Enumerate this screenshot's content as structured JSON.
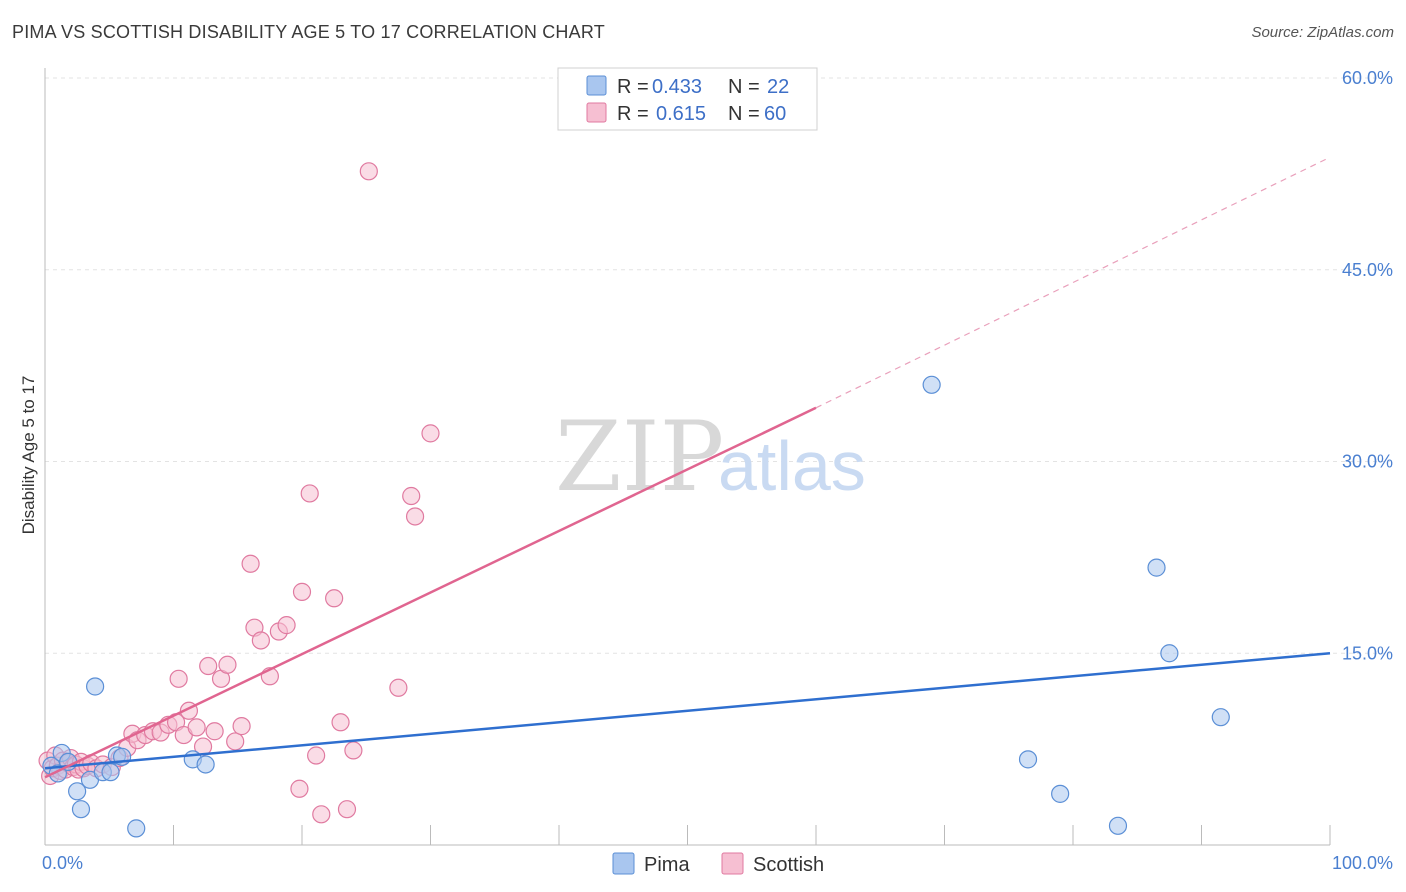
{
  "header": {
    "title": "PIMA VS SCOTTISH DISABILITY AGE 5 TO 17 CORRELATION CHART",
    "source": "Source: ZipAtlas.com"
  },
  "watermark": {
    "zip": "ZIP",
    "atlas": "atlas"
  },
  "legend": {
    "rows": [
      {
        "r_label": "R =",
        "r_value": "0.433",
        "n_label": "N =",
        "n_value": "22"
      },
      {
        "r_label": "R =",
        "r_value": "0.615",
        "n_label": "N =",
        "n_value": "60"
      }
    ]
  },
  "chart_data": {
    "type": "scatter",
    "title": "PIMA VS SCOTTISH DISABILITY AGE 5 TO 17 CORRELATION CHART",
    "ylabel": "Disability Age 5 to 17",
    "xlabel": "",
    "xlim": [
      0,
      100
    ],
    "ylim": [
      0,
      60
    ],
    "x_tick_labels": [
      "0.0%",
      "100.0%"
    ],
    "y_ticks": [
      15,
      30,
      45,
      60
    ],
    "y_tick_labels": [
      "15.0%",
      "30.0%",
      "45.0%",
      "60.0%"
    ],
    "grid": true,
    "legend_position": "top-center",
    "series": [
      {
        "name": "Pima",
        "color": "#5b8fd6",
        "fill": "#a9c6ef",
        "r": 0.433,
        "n": 22,
        "trend": {
          "x0": 0,
          "y0": 6.0,
          "x1": 100,
          "y1": 15.0,
          "dashed_from": 100
        },
        "points": [
          [
            0.5,
            6.2
          ],
          [
            1.0,
            5.6
          ],
          [
            1.3,
            7.2
          ],
          [
            1.8,
            6.5
          ],
          [
            2.5,
            4.2
          ],
          [
            2.8,
            2.8
          ],
          [
            3.5,
            5.1
          ],
          [
            3.9,
            12.4
          ],
          [
            4.5,
            5.7
          ],
          [
            5.1,
            5.7
          ],
          [
            5.6,
            7.0
          ],
          [
            6.0,
            6.9
          ],
          [
            7.1,
            1.3
          ],
          [
            11.5,
            6.7
          ],
          [
            12.5,
            6.3
          ],
          [
            69.0,
            36.0
          ],
          [
            76.5,
            6.7
          ],
          [
            79.0,
            4.0
          ],
          [
            83.5,
            1.5
          ],
          [
            86.5,
            21.7
          ],
          [
            87.5,
            15.0
          ],
          [
            91.5,
            10.0
          ]
        ]
      },
      {
        "name": "Scottish",
        "color": "#e07aa0",
        "fill": "#f6bfd2",
        "r": 0.615,
        "n": 60,
        "trend": {
          "x0": 0,
          "y0": 5.3,
          "x1": 60,
          "y1": 34.2,
          "dashed_to": 100,
          "dashed_y": 53.8
        },
        "points": [
          [
            0.2,
            6.6
          ],
          [
            0.4,
            5.4
          ],
          [
            0.6,
            6.0
          ],
          [
            0.8,
            7.0
          ],
          [
            1.0,
            6.2
          ],
          [
            1.2,
            5.8
          ],
          [
            1.4,
            6.6
          ],
          [
            1.6,
            5.9
          ],
          [
            1.8,
            6.4
          ],
          [
            2.0,
            6.8
          ],
          [
            2.2,
            6.1
          ],
          [
            2.4,
            6.3
          ],
          [
            2.6,
            5.9
          ],
          [
            2.8,
            6.5
          ],
          [
            3.0,
            6.0
          ],
          [
            3.3,
            6.2
          ],
          [
            3.6,
            6.4
          ],
          [
            4.0,
            6.0
          ],
          [
            4.5,
            6.3
          ],
          [
            5.2,
            6.1
          ],
          [
            5.8,
            6.8
          ],
          [
            6.4,
            7.6
          ],
          [
            6.8,
            8.7
          ],
          [
            7.2,
            8.2
          ],
          [
            7.8,
            8.6
          ],
          [
            8.4,
            8.9
          ],
          [
            9.0,
            8.8
          ],
          [
            9.6,
            9.4
          ],
          [
            10.2,
            9.6
          ],
          [
            10.4,
            13.0
          ],
          [
            10.8,
            8.6
          ],
          [
            11.2,
            10.5
          ],
          [
            11.8,
            9.2
          ],
          [
            12.3,
            7.7
          ],
          [
            12.7,
            14.0
          ],
          [
            13.2,
            8.9
          ],
          [
            13.7,
            13.0
          ],
          [
            14.2,
            14.1
          ],
          [
            14.8,
            8.1
          ],
          [
            15.3,
            9.3
          ],
          [
            16.0,
            22.0
          ],
          [
            16.3,
            17.0
          ],
          [
            16.8,
            16.0
          ],
          [
            17.5,
            13.2
          ],
          [
            18.2,
            16.7
          ],
          [
            18.8,
            17.2
          ],
          [
            19.8,
            4.4
          ],
          [
            20.0,
            19.8
          ],
          [
            20.6,
            27.5
          ],
          [
            21.1,
            7.0
          ],
          [
            21.5,
            2.4
          ],
          [
            22.5,
            19.3
          ],
          [
            23.0,
            9.6
          ],
          [
            23.5,
            2.8
          ],
          [
            24.0,
            7.4
          ],
          [
            25.2,
            52.7
          ],
          [
            27.5,
            12.3
          ],
          [
            28.5,
            27.3
          ],
          [
            28.8,
            25.7
          ],
          [
            30.0,
            32.2
          ]
        ]
      }
    ]
  },
  "bottom_legend": {
    "items": [
      "Pima",
      "Scottish"
    ]
  }
}
